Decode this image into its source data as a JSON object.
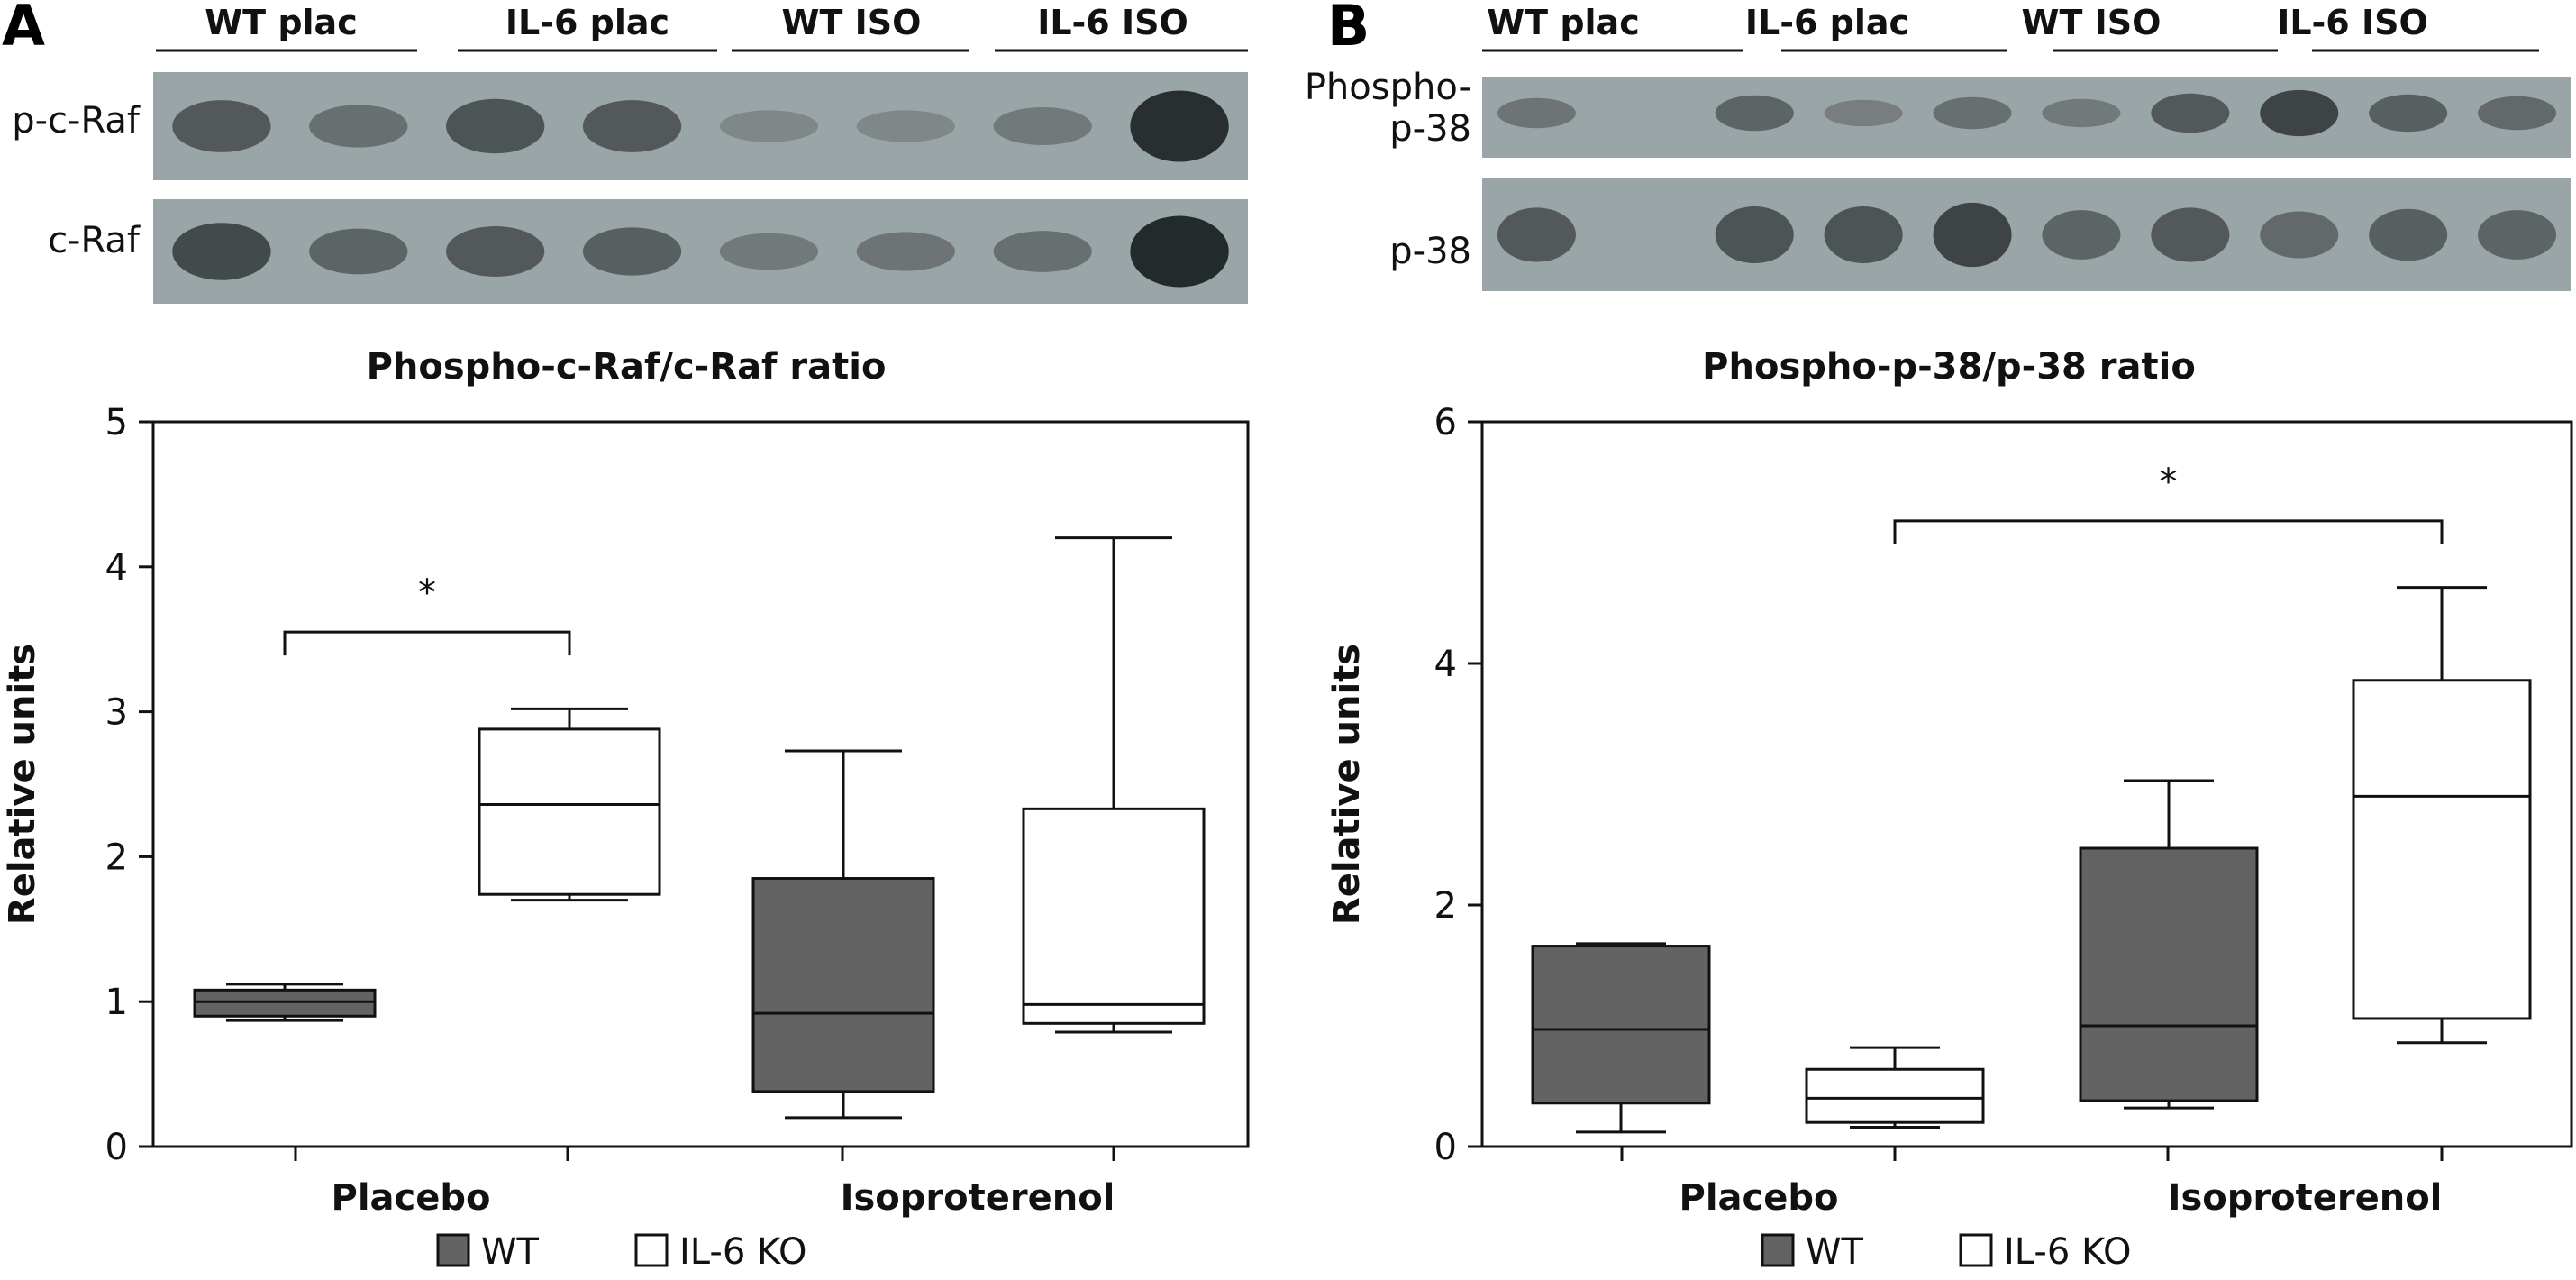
{
  "panels": [
    {
      "letter": "A",
      "blot": {
        "lane_groups": [
          "WT plac",
          "IL-6 plac",
          "WT ISO",
          "IL-6 ISO"
        ],
        "rows": [
          {
            "label": "p-c-Raf",
            "bands": [
              0.55,
              0.35,
              0.6,
              0.55,
              0.12,
              0.12,
              0.25,
              0.95
            ]
          },
          {
            "label": "c-Raf",
            "bands": [
              0.7,
              0.45,
              0.55,
              0.5,
              0.25,
              0.3,
              0.35,
              1.0
            ]
          }
        ]
      },
      "chart_data": {
        "type": "box",
        "title": "Phospho-c-Raf/c-Raf ratio",
        "xlabel": "",
        "ylabel": "Relative units",
        "ylim": [
          0,
          5
        ],
        "yticks": [
          "0",
          "1",
          "2",
          "3",
          "4",
          "5"
        ],
        "categories": [
          "Placebo",
          "Isoproterenol"
        ],
        "legend": [
          {
            "name": "WT",
            "color": "#636363"
          },
          {
            "name": "IL-6 KO",
            "color": "#ffffff"
          }
        ],
        "boxes": [
          {
            "category": "Placebo",
            "group": "WT",
            "min": 0.87,
            "q1": 0.9,
            "median": 1.0,
            "q3": 1.08,
            "max": 1.12
          },
          {
            "category": "Placebo",
            "group": "IL-6 KO",
            "min": 1.7,
            "q1": 1.74,
            "median": 2.36,
            "q3": 2.88,
            "max": 3.02
          },
          {
            "category": "Isoproterenol",
            "group": "WT",
            "min": 0.2,
            "q1": 0.38,
            "median": 0.92,
            "q3": 1.85,
            "max": 2.73
          },
          {
            "category": "Isoproterenol",
            "group": "IL-6 KO",
            "min": 0.79,
            "q1": 0.85,
            "median": 0.98,
            "q3": 2.33,
            "max": 4.2
          }
        ],
        "annotations": [
          {
            "label": "*",
            "from_box": 0,
            "to_box": 1,
            "y": 3.55
          }
        ]
      }
    },
    {
      "letter": "B",
      "blot": {
        "lane_groups": [
          "WT plac",
          "IL-6 plac",
          "WT ISO",
          "IL-6 ISO"
        ],
        "rows": [
          {
            "label": "Phospho-p-38",
            "bands": [
              0.3,
              0.0,
              0.45,
              0.2,
              0.35,
              0.25,
              0.55,
              0.75,
              0.5,
              0.4
            ]
          },
          {
            "label": "p-38",
            "bands": [
              0.55,
              0.0,
              0.6,
              0.6,
              0.75,
              0.45,
              0.55,
              0.4,
              0.5,
              0.45
            ]
          }
        ]
      },
      "chart_data": {
        "type": "box",
        "title": "Phospho-p-38/p-38 ratio",
        "xlabel": "",
        "ylabel": "Relative units",
        "ylim": [
          0,
          6
        ],
        "yticks": [
          "0",
          "2",
          "4",
          "6"
        ],
        "categories": [
          "Placebo",
          "Isoproterenol"
        ],
        "legend": [
          {
            "name": "WT",
            "color": "#636363"
          },
          {
            "name": "IL-6 KO",
            "color": "#ffffff"
          }
        ],
        "boxes": [
          {
            "category": "Placebo",
            "group": "WT",
            "min": 0.12,
            "q1": 0.36,
            "median": 0.97,
            "q3": 1.66,
            "max": 1.68
          },
          {
            "category": "Placebo",
            "group": "IL-6 KO",
            "min": 0.16,
            "q1": 0.2,
            "median": 0.4,
            "q3": 0.64,
            "max": 0.82
          },
          {
            "category": "Isoproterenol",
            "group": "WT",
            "min": 0.32,
            "q1": 0.38,
            "median": 1.0,
            "q3": 2.47,
            "max": 3.03
          },
          {
            "category": "Isoproterenol",
            "group": "IL-6 KO",
            "min": 0.86,
            "q1": 1.06,
            "median": 2.9,
            "q3": 3.86,
            "max": 4.63
          }
        ],
        "annotations": [
          {
            "label": "*",
            "from_box": 1,
            "to_box": 3,
            "y": 5.18
          }
        ]
      }
    }
  ]
}
